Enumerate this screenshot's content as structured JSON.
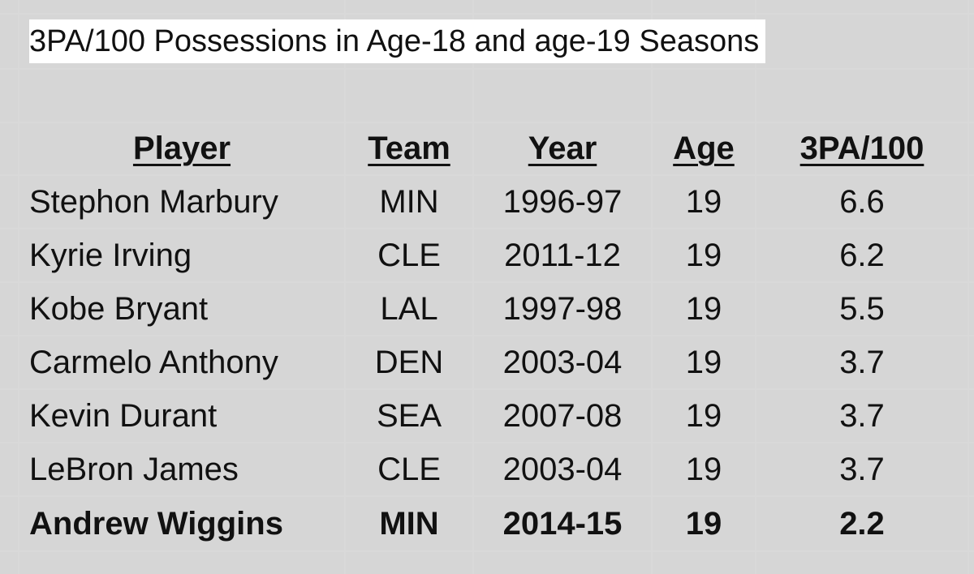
{
  "spreadsheet": {
    "title": "3PA/100 Possessions in Age-18 and age-19 Seasons",
    "headers": [
      "Player",
      "Team",
      "Year",
      "Age",
      "3PA/100"
    ],
    "rows": [
      {
        "player": "Stephon Marbury",
        "team": "MIN",
        "year": "1996-97",
        "age": "19",
        "tpa": "6.6",
        "bold": false
      },
      {
        "player": "Kyrie Irving",
        "team": "CLE",
        "year": "2011-12",
        "age": "19",
        "tpa": "6.2",
        "bold": false
      },
      {
        "player": "Kobe Bryant",
        "team": "LAL",
        "year": "1997-98",
        "age": "19",
        "tpa": "5.5",
        "bold": false
      },
      {
        "player": "Carmelo Anthony",
        "team": "DEN",
        "year": "2003-04",
        "age": "19",
        "tpa": "3.7",
        "bold": false
      },
      {
        "player": "Kevin Durant",
        "team": "SEA",
        "year": "2007-08",
        "age": "19",
        "tpa": "3.7",
        "bold": false
      },
      {
        "player": "LeBron James",
        "team": "CLE",
        "year": "2003-04",
        "age": "19",
        "tpa": "3.7",
        "bold": false
      },
      {
        "player": "Andrew Wiggins",
        "team": "MIN",
        "year": "2014-15",
        "age": "19",
        "tpa": "2.2",
        "bold": true
      }
    ],
    "gridline_color": "#d9d9d9"
  }
}
